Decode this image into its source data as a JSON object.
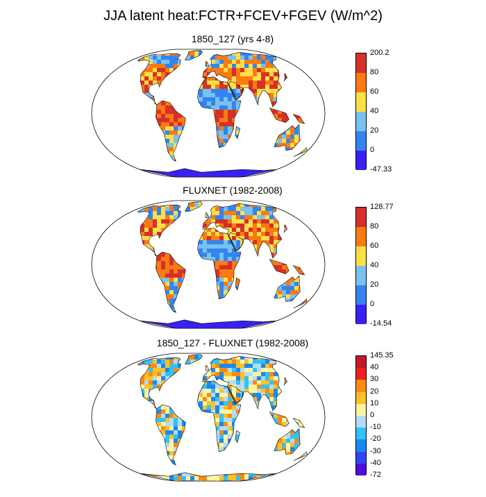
{
  "main_title": "JJA latent heat:FCTR+FCEV+FGEV (W/m^2)",
  "panels": [
    {
      "title": "1850_127 (yrs 4-8)",
      "colorbar": {
        "colors": [
          "#3a20f2",
          "#3384f0",
          "#79c1ef",
          "#fde047",
          "#fb7a11",
          "#d6302a"
        ],
        "labels": [
          "-47.33",
          "0",
          "20",
          "40",
          "60",
          "80",
          "200.2"
        ]
      },
      "palette": [
        "#3384f0",
        "#79c1ef",
        "#fde047",
        "#fb7a11",
        "#d6302a"
      ]
    },
    {
      "title": "FLUXNET (1982-2008)",
      "colorbar": {
        "colors": [
          "#3a20f2",
          "#3384f0",
          "#79c1ef",
          "#fde047",
          "#fb7a11",
          "#d6302a"
        ],
        "labels": [
          "-14.54",
          "0",
          "20",
          "40",
          "60",
          "80",
          "128.77"
        ]
      },
      "palette": [
        "#3384f0",
        "#79c1ef",
        "#fde047",
        "#fb7a11",
        "#d6302a"
      ]
    },
    {
      "title": "1850_127 - FLUXNET (1982-2008)",
      "colorbar": {
        "colors": [
          "#4b0fd9",
          "#3047ef",
          "#1a88f2",
          "#33c1f6",
          "#b4dcf8",
          "#fff4a3",
          "#fdbf2a",
          "#fb8a10",
          "#f0201a",
          "#c21a2a"
        ],
        "labels": [
          "-72",
          "-40",
          "-30",
          "-20",
          "-10",
          "0",
          "10",
          "20",
          "30",
          "40",
          "145.35"
        ]
      },
      "palette": [
        "#33c1f6",
        "#b4dcf8",
        "#fff4a3",
        "#fdbf2a",
        "#fb8a10",
        "#1a88f2"
      ]
    }
  ]
}
